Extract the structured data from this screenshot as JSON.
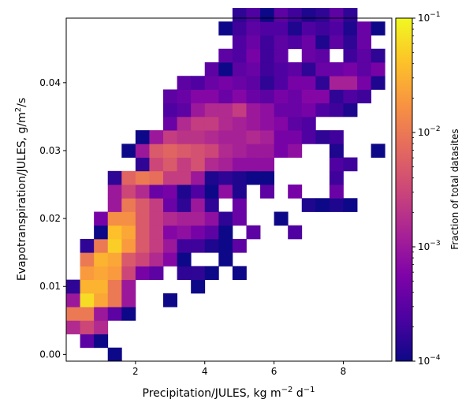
{
  "chart_data": {
    "type": "heatmap",
    "xlabel": {
      "main": "Precipitation/JULES,  kg m",
      "sup1": "−2",
      "mid": " d",
      "sup2": "−1"
    },
    "ylabel": {
      "main": "Evapotranspiration/JULES,  g/m",
      "sup": "2",
      "tail": "/s"
    },
    "xlim": [
      0.0,
      9.4
    ],
    "ylim": [
      -0.001,
      0.0495
    ],
    "xticks": [
      {
        "v": 2,
        "label": "2"
      },
      {
        "v": 4,
        "label": "4"
      },
      {
        "v": 6,
        "label": "6"
      },
      {
        "v": 8,
        "label": "8"
      }
    ],
    "yticks": [
      {
        "v": 0.0,
        "label": "0.00"
      },
      {
        "v": 0.01,
        "label": "0.01"
      },
      {
        "v": 0.02,
        "label": "0.02"
      },
      {
        "v": 0.03,
        "label": "0.03"
      },
      {
        "v": 0.04,
        "label": "0.04"
      }
    ],
    "bins": {
      "x0": 0.0,
      "dx": 0.4,
      "nx": 24,
      "y0": -0.001,
      "dy": 0.002,
      "ny": 26
    },
    "colorbar": {
      "label": "Fraction of total datasites",
      "scale": "log",
      "range_exp": [
        -4,
        -1
      ],
      "ticks": [
        {
          "exp": -1,
          "label": "10",
          "sup": "−1"
        },
        {
          "exp": -2,
          "label": "10",
          "sup": "−2"
        },
        {
          "exp": -3,
          "label": "10",
          "sup": "−3"
        },
        {
          "exp": -4,
          "label": "10",
          "sup": "−4"
        }
      ],
      "colormap": "plasma"
    },
    "cells_note": "each cell: [column index, row index, log10 fraction]",
    "cells": [
      [
        3,
        0,
        -4
      ],
      [
        1,
        1,
        -3.5
      ],
      [
        2,
        1,
        -4
      ],
      [
        0,
        2,
        -2.8
      ],
      [
        1,
        2,
        -2.5
      ],
      [
        2,
        2,
        -2.8
      ],
      [
        0,
        3,
        -2
      ],
      [
        1,
        3,
        -2
      ],
      [
        2,
        3,
        -3
      ],
      [
        3,
        3,
        -3.5
      ],
      [
        4,
        3,
        -4
      ],
      [
        0,
        4,
        -3
      ],
      [
        1,
        4,
        -1.2
      ],
      [
        2,
        4,
        -1.6
      ],
      [
        3,
        4,
        -2
      ],
      [
        4,
        4,
        -3
      ],
      [
        7,
        4,
        -4
      ],
      [
        0,
        5,
        -3.8
      ],
      [
        1,
        5,
        -1.5
      ],
      [
        2,
        5,
        -1.5
      ],
      [
        3,
        5,
        -2
      ],
      [
        4,
        5,
        -3
      ],
      [
        9,
        5,
        -4
      ],
      [
        1,
        6,
        -1.7
      ],
      [
        2,
        6,
        -1.6
      ],
      [
        3,
        6,
        -1.7
      ],
      [
        4,
        6,
        -2.5
      ],
      [
        5,
        6,
        -3.3
      ],
      [
        6,
        6,
        -3.5
      ],
      [
        8,
        6,
        -3.8
      ],
      [
        9,
        6,
        -3.8
      ],
      [
        10,
        6,
        -4
      ],
      [
        12,
        6,
        -4
      ],
      [
        1,
        7,
        -2
      ],
      [
        2,
        7,
        -1.5
      ],
      [
        3,
        7,
        -1.6
      ],
      [
        4,
        7,
        -2.3
      ],
      [
        5,
        7,
        -2.5
      ],
      [
        6,
        7,
        -2.8
      ],
      [
        7,
        7,
        -3.2
      ],
      [
        8,
        7,
        -4
      ],
      [
        11,
        7,
        -4
      ],
      [
        1,
        8,
        -3.8
      ],
      [
        2,
        8,
        -2
      ],
      [
        3,
        8,
        -1.3
      ],
      [
        4,
        8,
        -1.7
      ],
      [
        5,
        8,
        -2.3
      ],
      [
        6,
        8,
        -2.6
      ],
      [
        7,
        8,
        -3
      ],
      [
        8,
        8,
        -3.7
      ],
      [
        9,
        8,
        -3.7
      ],
      [
        10,
        8,
        -3.9
      ],
      [
        11,
        8,
        -4
      ],
      [
        12,
        8,
        -3.5
      ],
      [
        2,
        9,
        -4
      ],
      [
        3,
        9,
        -1.4
      ],
      [
        4,
        9,
        -1.6
      ],
      [
        5,
        9,
        -2.3
      ],
      [
        6,
        9,
        -2.6
      ],
      [
        7,
        9,
        -3.2
      ],
      [
        8,
        9,
        -3.1
      ],
      [
        9,
        9,
        -3.3
      ],
      [
        10,
        9,
        -3.5
      ],
      [
        11,
        9,
        -4
      ],
      [
        13,
        9,
        -3.5
      ],
      [
        16,
        9,
        -3.6
      ],
      [
        2,
        10,
        -3.3
      ],
      [
        3,
        10,
        -1.8
      ],
      [
        4,
        10,
        -1.8
      ],
      [
        5,
        10,
        -2.3
      ],
      [
        6,
        10,
        -2.6
      ],
      [
        7,
        10,
        -2.8
      ],
      [
        8,
        10,
        -2.9
      ],
      [
        9,
        10,
        -2.9
      ],
      [
        10,
        10,
        -3.1
      ],
      [
        11,
        10,
        -3.8
      ],
      [
        12,
        10,
        -3.4
      ],
      [
        15,
        10,
        -4
      ],
      [
        3,
        11,
        -3
      ],
      [
        4,
        11,
        -2
      ],
      [
        5,
        11,
        -2.3
      ],
      [
        6,
        11,
        -2.6
      ],
      [
        7,
        11,
        -3.4
      ],
      [
        8,
        11,
        -3.8
      ],
      [
        9,
        11,
        -3
      ],
      [
        10,
        11,
        -3.8
      ],
      [
        12,
        11,
        -3.4
      ],
      [
        17,
        11,
        -3.9
      ],
      [
        18,
        11,
        -4
      ],
      [
        19,
        11,
        -3.9
      ],
      [
        20,
        11,
        -4
      ],
      [
        3,
        12,
        -3
      ],
      [
        4,
        12,
        -2.5
      ],
      [
        5,
        12,
        -2.8
      ],
      [
        6,
        12,
        -3.4
      ],
      [
        7,
        12,
        -3.3
      ],
      [
        8,
        12,
        -3.9
      ],
      [
        9,
        12,
        -3.6
      ],
      [
        10,
        12,
        -4
      ],
      [
        11,
        12,
        -3.1
      ],
      [
        12,
        12,
        -3.9
      ],
      [
        14,
        12,
        -3.5
      ],
      [
        16,
        12,
        -3.3
      ],
      [
        19,
        12,
        -3.4
      ],
      [
        3,
        13,
        -3.8
      ],
      [
        4,
        13,
        -2.2
      ],
      [
        5,
        13,
        -2
      ],
      [
        6,
        13,
        -2.1
      ],
      [
        7,
        13,
        -2.6
      ],
      [
        8,
        13,
        -2.6
      ],
      [
        9,
        13,
        -3
      ],
      [
        10,
        13,
        -3.9
      ],
      [
        11,
        13,
        -3.8
      ],
      [
        12,
        13,
        -3.9
      ],
      [
        13,
        13,
        -4
      ],
      [
        14,
        13,
        -4
      ],
      [
        19,
        13,
        -3.7
      ],
      [
        5,
        14,
        -3.8
      ],
      [
        6,
        14,
        -2.5
      ],
      [
        7,
        14,
        -2.3
      ],
      [
        8,
        14,
        -2.6
      ],
      [
        9,
        14,
        -2.4
      ],
      [
        10,
        14,
        -2.8
      ],
      [
        11,
        14,
        -2.9
      ],
      [
        12,
        14,
        -3.1
      ],
      [
        13,
        14,
        -3.1
      ],
      [
        14,
        14,
        -3.1
      ],
      [
        19,
        14,
        -3.6
      ],
      [
        20,
        14,
        -3.7
      ],
      [
        4,
        15,
        -4
      ],
      [
        5,
        15,
        -3
      ],
      [
        6,
        15,
        -2.3
      ],
      [
        7,
        15,
        -2.2
      ],
      [
        8,
        15,
        -2.3
      ],
      [
        9,
        15,
        -2.4
      ],
      [
        10,
        15,
        -2.5
      ],
      [
        11,
        15,
        -2.8
      ],
      [
        12,
        15,
        -2.9
      ],
      [
        13,
        15,
        -3
      ],
      [
        14,
        15,
        -3
      ],
      [
        15,
        15,
        -3.3
      ],
      [
        16,
        15,
        -3.1
      ],
      [
        19,
        15,
        -3.9
      ],
      [
        22,
        15,
        -4
      ],
      [
        5,
        16,
        -4
      ],
      [
        6,
        16,
        -3
      ],
      [
        7,
        16,
        -2.6
      ],
      [
        8,
        16,
        -2.7
      ],
      [
        9,
        16,
        -2.7
      ],
      [
        10,
        16,
        -2.8
      ],
      [
        11,
        16,
        -2.9
      ],
      [
        12,
        16,
        -2.9
      ],
      [
        13,
        16,
        -2.8
      ],
      [
        14,
        16,
        -2.9
      ],
      [
        15,
        16,
        -3.3
      ],
      [
        16,
        16,
        -3.3
      ],
      [
        17,
        16,
        -3.6
      ],
      [
        18,
        16,
        -3.8
      ],
      [
        19,
        16,
        -3.7
      ],
      [
        7,
        17,
        -3.4
      ],
      [
        8,
        17,
        -2.8
      ],
      [
        9,
        17,
        -2.6
      ],
      [
        10,
        17,
        -2.6
      ],
      [
        11,
        17,
        -2.8
      ],
      [
        12,
        17,
        -2.9
      ],
      [
        13,
        17,
        -3
      ],
      [
        14,
        17,
        -3.1
      ],
      [
        15,
        17,
        -3.2
      ],
      [
        16,
        17,
        -3.5
      ],
      [
        17,
        17,
        -3.6
      ],
      [
        7,
        18,
        -3.6
      ],
      [
        8,
        18,
        -3.5
      ],
      [
        9,
        18,
        -3
      ],
      [
        10,
        18,
        -2.8
      ],
      [
        11,
        18,
        -2.8
      ],
      [
        12,
        18,
        -2.6
      ],
      [
        13,
        18,
        -3
      ],
      [
        14,
        18,
        -3.1
      ],
      [
        15,
        18,
        -3.4
      ],
      [
        16,
        18,
        -3.4
      ],
      [
        17,
        18,
        -3.3
      ],
      [
        18,
        18,
        -3.6
      ],
      [
        19,
        18,
        -3.7
      ],
      [
        20,
        18,
        -3.9
      ],
      [
        7,
        19,
        -3.5
      ],
      [
        8,
        19,
        -3.4
      ],
      [
        9,
        19,
        -3.2
      ],
      [
        10,
        19,
        -3.2
      ],
      [
        11,
        19,
        -3.4
      ],
      [
        12,
        19,
        -3.2
      ],
      [
        13,
        19,
        -3.4
      ],
      [
        14,
        19,
        -3.5
      ],
      [
        15,
        19,
        -3.3
      ],
      [
        16,
        19,
        -3.4
      ],
      [
        17,
        19,
        -3.2
      ],
      [
        18,
        19,
        -3.2
      ],
      [
        19,
        19,
        -3.8
      ],
      [
        20,
        19,
        -3.6
      ],
      [
        21,
        19,
        -3.7
      ],
      [
        8,
        20,
        -3.5
      ],
      [
        9,
        20,
        -3.6
      ],
      [
        10,
        20,
        -3.4
      ],
      [
        11,
        20,
        -3.3
      ],
      [
        12,
        20,
        -3.4
      ],
      [
        13,
        20,
        -3.5
      ],
      [
        14,
        20,
        -3.8
      ],
      [
        15,
        20,
        -3.6
      ],
      [
        16,
        20,
        -3.3
      ],
      [
        17,
        20,
        -3.3
      ],
      [
        18,
        20,
        -3.8
      ],
      [
        19,
        20,
        -2.9
      ],
      [
        20,
        20,
        -2.9
      ],
      [
        21,
        20,
        -3.3
      ],
      [
        22,
        20,
        -3.9
      ],
      [
        10,
        21,
        -3.5
      ],
      [
        11,
        21,
        -4
      ],
      [
        12,
        21,
        -3.5
      ],
      [
        13,
        21,
        -3.4
      ],
      [
        14,
        21,
        -3.7
      ],
      [
        15,
        21,
        -3.6
      ],
      [
        16,
        21,
        -3.5
      ],
      [
        17,
        21,
        -3.8
      ],
      [
        18,
        21,
        -3.4
      ],
      [
        19,
        21,
        -3.4
      ],
      [
        20,
        21,
        -3.3
      ],
      [
        21,
        21,
        -3.5
      ],
      [
        22,
        21,
        -3.3
      ],
      [
        11,
        22,
        -3.5
      ],
      [
        12,
        22,
        -3.6
      ],
      [
        13,
        22,
        -3.3
      ],
      [
        14,
        22,
        -3.7
      ],
      [
        15,
        22,
        -3.5
      ],
      [
        17,
        22,
        -3.4
      ],
      [
        18,
        22,
        -3.5
      ],
      [
        20,
        22,
        -3.7
      ],
      [
        21,
        22,
        -3.5
      ],
      [
        22,
        22,
        -3.8
      ],
      [
        12,
        23,
        -3.6
      ],
      [
        13,
        23,
        -3.4
      ],
      [
        14,
        23,
        -3.7
      ],
      [
        15,
        23,
        -3.5
      ],
      [
        16,
        23,
        -3.6
      ],
      [
        17,
        23,
        -3.4
      ],
      [
        18,
        23,
        -3.9
      ],
      [
        19,
        23,
        -3.5
      ],
      [
        20,
        23,
        -3.8
      ],
      [
        21,
        23,
        -3.4
      ],
      [
        11,
        24,
        -4
      ],
      [
        12,
        24,
        -3.7
      ],
      [
        13,
        24,
        -3.5
      ],
      [
        14,
        24,
        -3.6
      ],
      [
        15,
        24,
        -3.6
      ],
      [
        16,
        24,
        -3.9
      ],
      [
        17,
        24,
        -3.6
      ],
      [
        18,
        24,
        -3.7
      ],
      [
        19,
        24,
        -3.6
      ],
      [
        20,
        24,
        -3.9
      ],
      [
        21,
        24,
        -3.4
      ],
      [
        22,
        24,
        -4
      ],
      [
        12,
        25,
        -3.8
      ],
      [
        13,
        25,
        -3.6
      ],
      [
        14,
        25,
        -4
      ],
      [
        15,
        25,
        -3.5
      ],
      [
        16,
        25,
        -3.7
      ],
      [
        17,
        25,
        -3.9
      ],
      [
        18,
        25,
        -3.8
      ],
      [
        19,
        25,
        -3.5
      ],
      [
        20,
        25,
        -3.8
      ]
    ]
  }
}
